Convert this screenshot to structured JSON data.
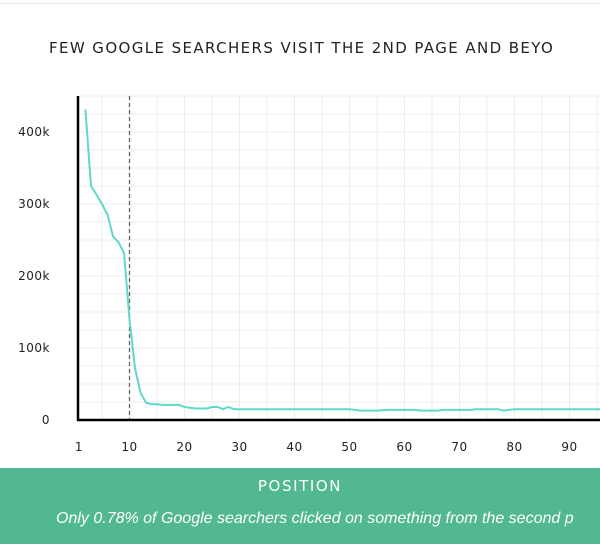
{
  "colors": {
    "line": "#5fd9c9",
    "footer_bg": "#52b892",
    "grid": "#ececec",
    "axis": "#000000",
    "marker": "#666666"
  },
  "chart_data": {
    "type": "line",
    "title": "FEW GOOGLE SEARCHERS VISIT THE 2ND PAGE AND BEYO",
    "xlabel": "POSITION",
    "ylabel": "",
    "caption": "Only 0.78% of Google searchers clicked on something from the second p",
    "xlim": [
      1,
      100
    ],
    "ylim": [
      0,
      450000
    ],
    "x_ticks": [
      1,
      10,
      20,
      30,
      40,
      50,
      60,
      70,
      80,
      90
    ],
    "y_ticks": [
      0,
      100000,
      200000,
      300000,
      400000
    ],
    "y_tick_labels": [
      "0",
      "100k",
      "200k",
      "300k",
      "400k"
    ],
    "grid": true,
    "reference_line": {
      "x": 10,
      "style": "dashed"
    },
    "x": [
      2,
      3,
      4,
      5,
      6,
      7,
      8,
      9,
      10,
      11,
      12,
      13,
      14,
      15,
      16,
      17,
      18,
      19,
      20,
      21,
      22,
      24,
      25,
      26,
      27,
      28,
      29,
      30,
      35,
      40,
      45,
      50,
      51,
      52,
      55,
      57,
      60,
      62,
      63,
      66,
      67,
      69,
      70,
      72,
      73,
      75,
      77,
      78,
      80,
      85,
      90,
      95,
      100
    ],
    "y": [
      430000,
      325000,
      313000,
      300000,
      285000,
      255000,
      247000,
      232000,
      140000,
      72000,
      38000,
      24000,
      22000,
      22000,
      21000,
      21000,
      21000,
      21000,
      18000,
      17000,
      16000,
      16000,
      18000,
      18000,
      15000,
      18000,
      15000,
      15000,
      15000,
      15000,
      15000,
      15000,
      14000,
      13000,
      13000,
      14000,
      14000,
      14000,
      13000,
      13000,
      14000,
      14000,
      14000,
      14000,
      15000,
      15000,
      15000,
      13000,
      15000,
      15000,
      15000,
      15000,
      15000
    ]
  }
}
